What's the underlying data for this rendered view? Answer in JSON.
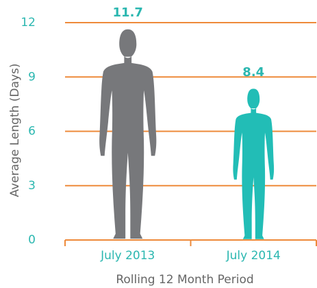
{
  "chart_data": {
    "type": "pictograph",
    "x_label": "Rolling 12 Month Period",
    "y_label": "Average Length (Days)",
    "categories": [
      "July 2013",
      "July 2014"
    ],
    "values": [
      11.7,
      8.4
    ],
    "colors": [
      "#77787b",
      "#22bdb6"
    ],
    "grid_color": "#ee8a3a",
    "ylim": [
      0,
      12
    ],
    "yticks": [
      0,
      3,
      6,
      9,
      12
    ],
    "grid": true
  }
}
